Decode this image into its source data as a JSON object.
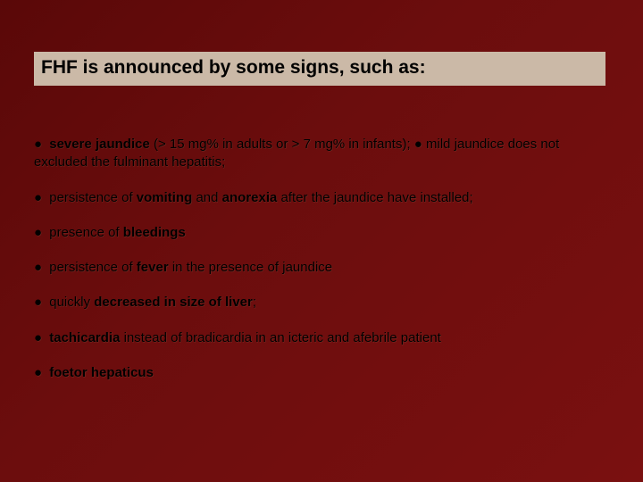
{
  "slide": {
    "title": "FHF is announced by some signs, such as:",
    "title_bg": "#cbb9a7",
    "title_color": "#000000",
    "title_fontsize": 21,
    "background_gradient": [
      "#5a0808",
      "#6b0d0d",
      "#7a1010"
    ],
    "body_fontsize": 15,
    "body_color": "#000000",
    "bullet_char": "●",
    "items": [
      {
        "segments": [
          {
            "text": "severe jaundice",
            "bold": true
          },
          {
            "text": " (> 15 mg% in adults or > 7 mg% in infants); ",
            "bold": false
          },
          {
            "text": "●",
            "bold": false
          },
          {
            "text": " mild jaundice does not excluded the fulminant hepatitis;",
            "bold": false
          }
        ]
      },
      {
        "segments": [
          {
            "text": "persistence of ",
            "bold": false
          },
          {
            "text": "vomiting",
            "bold": true
          },
          {
            "text": " and ",
            "bold": false
          },
          {
            "text": "anorexia",
            "bold": true
          },
          {
            "text": " after the jaundice have installed;",
            "bold": false
          }
        ]
      },
      {
        "segments": [
          {
            "text": "presence of ",
            "bold": false
          },
          {
            "text": "bleedings",
            "bold": true
          }
        ]
      },
      {
        "segments": [
          {
            "text": "persistence of ",
            "bold": false
          },
          {
            "text": "fever",
            "bold": true
          },
          {
            "text": " in the presence of jaundice",
            "bold": false
          }
        ]
      },
      {
        "segments": [
          {
            "text": "quickly ",
            "bold": false
          },
          {
            "text": "decreased in size of liver",
            "bold": true
          },
          {
            "text": ";",
            "bold": false
          }
        ]
      },
      {
        "segments": [
          {
            "text": "tachicardia",
            "bold": true
          },
          {
            "text": " instead of bradicardia in an icteric and afebrile patient",
            "bold": false
          }
        ]
      },
      {
        "segments": [
          {
            "text": "foetor hepaticus",
            "bold": true
          }
        ]
      }
    ]
  }
}
